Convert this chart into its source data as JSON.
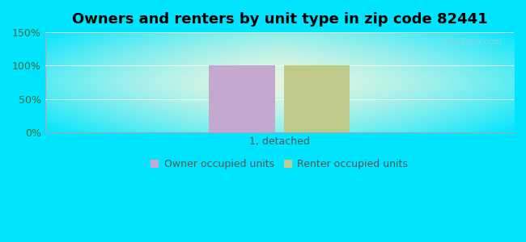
{
  "title": "Owners and renters by unit type in zip code 82441",
  "categories": [
    "1, detached"
  ],
  "owner_values": [
    100
  ],
  "renter_values": [
    100
  ],
  "owner_color": "#c4a8d0",
  "renter_color": "#bec98a",
  "ylim": [
    0,
    150
  ],
  "yticks": [
    0,
    50,
    100,
    150
  ],
  "yticklabels": [
    "0%",
    "50%",
    "100%",
    "150%"
  ],
  "bg_cyan": [
    0,
    229,
    255
  ],
  "bg_inner": [
    230,
    245,
    225
  ],
  "watermark": "City-Data.com",
  "legend_owner": "Owner occupied units",
  "legend_renter": "Renter occupied units",
  "bar_width": 0.28,
  "title_fontsize": 13,
  "tick_fontsize": 9,
  "legend_fontsize": 9,
  "tick_color": "#3a6b35",
  "xlabel_color": "#555555"
}
